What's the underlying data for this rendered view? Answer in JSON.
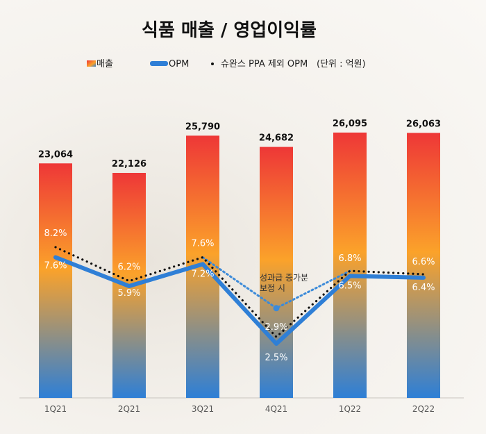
{
  "chart_data": {
    "type": "bar",
    "title": "식품 매출 / 영업이익률",
    "unit_note": "(단위 : 억원)",
    "categories": [
      "1Q21",
      "2Q21",
      "3Q21",
      "4Q21",
      "1Q22",
      "2Q22"
    ],
    "ylim": [
      0,
      28000
    ],
    "grid": false,
    "legend_position": "top",
    "series": [
      {
        "name": "매출",
        "type": "bar",
        "values": [
          23064,
          22126,
          25790,
          24682,
          26095,
          26063
        ],
        "labels": [
          "23,064",
          "22,126",
          "25,790",
          "24,682",
          "26,095",
          "26,063"
        ]
      },
      {
        "name": "OPM",
        "type": "line",
        "values": [
          7.6,
          5.9,
          7.2,
          2.5,
          6.5,
          6.4
        ],
        "labels": [
          "7.6%",
          "5.9%",
          "7.2%",
          "2.5%",
          "6.5%",
          "6.4%"
        ]
      },
      {
        "name": "슈완스 PPA 제외 OPM",
        "type": "dotted-line",
        "values": [
          8.2,
          6.2,
          7.6,
          2.9,
          6.8,
          6.6
        ],
        "labels": [
          "8.2%",
          "6.2%",
          "7.6%",
          "2.9%",
          "6.8%",
          "6.6%"
        ]
      }
    ],
    "annotation": {
      "lines": [
        "성과급 증가분",
        "보정 시"
      ],
      "category": "4Q21",
      "value": 4.6
    },
    "colors": {
      "bar_top": "#ee3737",
      "bar_mid": "#fba22a",
      "bar_bottom": "#2e7fd6",
      "opm_line": "#2f7fd6",
      "ppa_dots": "#111111",
      "annotation_line": "#3b8ad9"
    }
  }
}
